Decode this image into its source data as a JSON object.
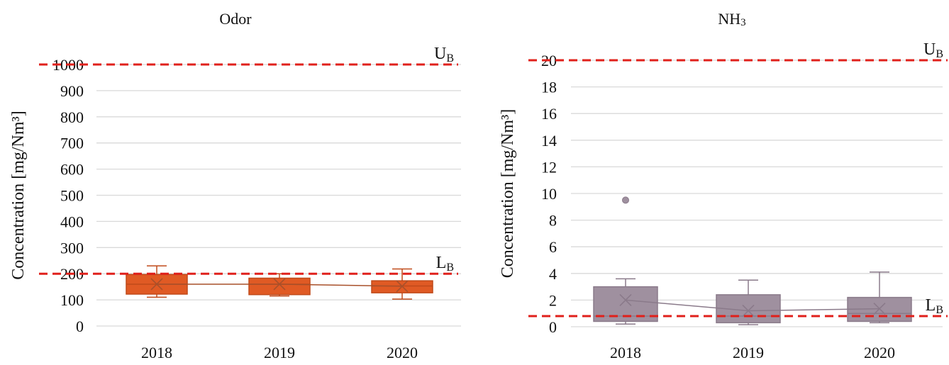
{
  "chart_data": [
    {
      "type": "box",
      "title": "Odor",
      "ylabel": "Concentration [mg/Nm³]",
      "xlabel": "",
      "ylim": [
        0,
        1000
      ],
      "yticks": [
        0,
        100,
        200,
        300,
        400,
        500,
        600,
        700,
        800,
        900,
        1000
      ],
      "grid": true,
      "categories": [
        "2018",
        "2019",
        "2020"
      ],
      "boxes": [
        {
          "category": "2018",
          "min": 110,
          "q1": 122,
          "median": 160,
          "q3": 197,
          "max": 230,
          "mean": 160,
          "outliers": []
        },
        {
          "category": "2019",
          "min": 115,
          "q1": 120,
          "median": 160,
          "q3": 183,
          "max": 200,
          "mean": 160,
          "outliers": []
        },
        {
          "category": "2020",
          "min": 103,
          "q1": 127,
          "median": 153,
          "q3": 173,
          "max": 218,
          "mean": 152,
          "outliers": []
        }
      ],
      "reference_lines": [
        {
          "label": "U",
          "subscript": "B",
          "value": 1000,
          "color": "#e0201b"
        },
        {
          "label": "L",
          "subscript": "B",
          "value": 200,
          "color": "#e0201b"
        }
      ],
      "box_fill": "#e05a24",
      "box_stroke": "#c04a1a",
      "mean_line_color": "#a8502a"
    },
    {
      "type": "box",
      "title_main": "NH",
      "title_sub": "3",
      "ylabel": "Concentration [mg/Nm³]",
      "xlabel": "",
      "ylim": [
        0,
        20
      ],
      "yticks": [
        0,
        2,
        4,
        6,
        8,
        10,
        12,
        14,
        16,
        18,
        20
      ],
      "grid": true,
      "categories": [
        "2018",
        "2019",
        "2020"
      ],
      "boxes": [
        {
          "category": "2018",
          "min": 0.2,
          "q1": 0.4,
          "median": 0.8,
          "q3": 3.0,
          "max": 3.6,
          "mean": 2.0,
          "outliers": [
            9.5
          ]
        },
        {
          "category": "2019",
          "min": 0.15,
          "q1": 0.3,
          "median": 0.8,
          "q3": 2.4,
          "max": 3.5,
          "mean": 1.2,
          "outliers": []
        },
        {
          "category": "2020",
          "min": 0.3,
          "q1": 0.4,
          "median": 1.0,
          "q3": 2.2,
          "max": 4.1,
          "mean": 1.35,
          "outliers": []
        }
      ],
      "reference_lines": [
        {
          "label": "U",
          "subscript": "B",
          "value": 20,
          "color": "#e0201b"
        },
        {
          "label": "L",
          "subscript": "B",
          "value": 0.8,
          "color": "#e0201b"
        }
      ],
      "box_fill": "#9f909f",
      "box_stroke": "#8a7a8a",
      "mean_line_color": "#8a7a8a"
    }
  ]
}
